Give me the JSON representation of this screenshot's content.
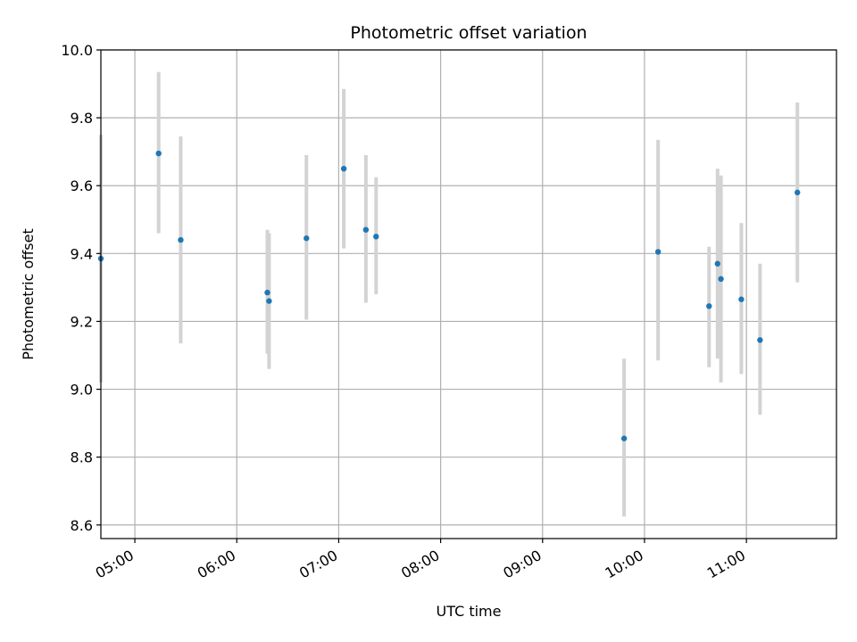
{
  "chart_data": {
    "type": "scatter",
    "title": "Photometric offset variation",
    "xlabel": "UTC time",
    "ylabel": "Photometric offset",
    "x_axis": "time (UTC, HH:MM)",
    "xlim": [
      "04:40",
      "11:53"
    ],
    "ylim": [
      8.56,
      10.0
    ],
    "x_ticks": [
      "05:00",
      "06:00",
      "07:00",
      "08:00",
      "09:00",
      "10:00",
      "11:00"
    ],
    "y_ticks": [
      "8.6",
      "8.8",
      "9.0",
      "9.2",
      "9.4",
      "9.6",
      "9.8",
      "10.0"
    ],
    "grid": true,
    "legend": "none",
    "colors": {
      "marker": "#1f77b4",
      "errorbar": "#d3d3d3",
      "grid": "#b0b0b0"
    },
    "points": [
      {
        "x": "04:40",
        "y": 9.385,
        "ylow": 9.02,
        "yhigh": 9.75
      },
      {
        "x": "05:14",
        "y": 9.695,
        "ylow": 9.46,
        "yhigh": 9.935
      },
      {
        "x": "05:27",
        "y": 9.44,
        "ylow": 9.135,
        "yhigh": 9.745
      },
      {
        "x": "06:18",
        "y": 9.285,
        "ylow": 9.105,
        "yhigh": 9.47
      },
      {
        "x": "06:19",
        "y": 9.26,
        "ylow": 9.06,
        "yhigh": 9.46
      },
      {
        "x": "06:41",
        "y": 9.445,
        "ylow": 9.205,
        "yhigh": 9.69
      },
      {
        "x": "07:03",
        "y": 9.65,
        "ylow": 9.415,
        "yhigh": 9.885
      },
      {
        "x": "07:16",
        "y": 9.47,
        "ylow": 9.255,
        "yhigh": 9.69
      },
      {
        "x": "07:22",
        "y": 9.45,
        "ylow": 9.28,
        "yhigh": 9.625
      },
      {
        "x": "09:48",
        "y": 8.855,
        "ylow": 8.625,
        "yhigh": 9.09
      },
      {
        "x": "10:08",
        "y": 9.405,
        "ylow": 9.085,
        "yhigh": 9.735
      },
      {
        "x": "10:38",
        "y": 9.245,
        "ylow": 9.065,
        "yhigh": 9.42
      },
      {
        "x": "10:43",
        "y": 9.37,
        "ylow": 9.09,
        "yhigh": 9.65
      },
      {
        "x": "10:45",
        "y": 9.325,
        "ylow": 9.02,
        "yhigh": 9.63
      },
      {
        "x": "10:57",
        "y": 9.265,
        "ylow": 9.045,
        "yhigh": 9.49
      },
      {
        "x": "11:08",
        "y": 9.145,
        "ylow": 8.925,
        "yhigh": 9.37
      },
      {
        "x": "11:30",
        "y": 9.58,
        "ylow": 9.315,
        "yhigh": 9.845
      }
    ]
  }
}
